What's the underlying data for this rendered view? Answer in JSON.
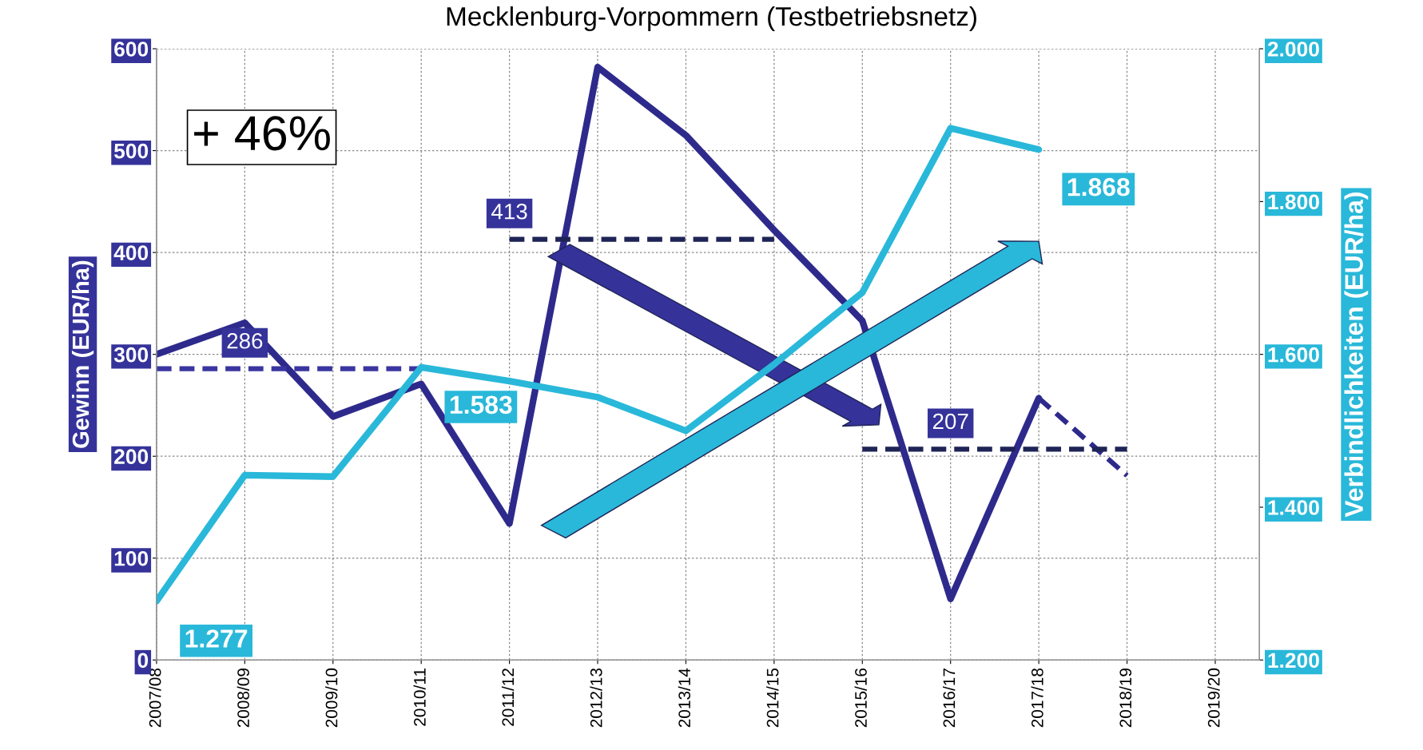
{
  "chart_data": {
    "type": "line",
    "title": "Mecklenburg-Vorpommern (Testbetriebsnetz)",
    "categories": [
      "2007/08",
      "2008/09",
      "2009/10",
      "2010/11",
      "2011/12",
      "2012/13",
      "2013/14",
      "2014/15",
      "2015/16",
      "2016/17",
      "2017/18",
      "2018/19",
      "2019/20"
    ],
    "ylabel": "Gewinn (EUR/ha)",
    "y2label": "Verbindlichkeiten (EUR/ha)",
    "ylim": [
      0,
      600
    ],
    "yticks": [
      0,
      100,
      200,
      300,
      400,
      500,
      600
    ],
    "y2lim": [
      1.2,
      2.0
    ],
    "y2ticks": [
      {
        "value": 1.2,
        "label": "1.200"
      },
      {
        "value": 1.4,
        "label": "1.400"
      },
      {
        "value": 1.6,
        "label": "1.600"
      },
      {
        "value": 1.8,
        "label": "1.800"
      },
      {
        "value": 2.0,
        "label": "2.000"
      }
    ],
    "grid": true,
    "marker": "none",
    "series": [
      {
        "color": "#2e2a8c",
        "values": [
          300,
          331,
          239,
          271,
          134,
          582,
          515,
          422,
          333,
          60,
          257,
          null,
          null
        ]
      },
      {
        "color": "#2e2a8c",
        "x": [
          "2017/18",
          "2018/19"
        ],
        "values": [
          257,
          181
        ],
        "line_style": "dashed"
      },
      {
        "color": "#29b8d9",
        "axis": "y2",
        "values": [
          1.277,
          1.442,
          1.44,
          1.583,
          1.565,
          1.544,
          1.5,
          1.587,
          1.681,
          1.896,
          1.868,
          null,
          null
        ],
        "value_labels": [
          "1.277",
          null,
          null,
          "1.583",
          null,
          null,
          null,
          null,
          null,
          null,
          "1.868",
          null,
          null
        ]
      },
      {
        "color": "#3a35a0",
        "x": [
          "2007/08",
          "2008/09",
          "2009/10",
          "2010/11"
        ],
        "values": [
          286,
          286,
          286,
          286
        ],
        "line_style": "dashed",
        "value_labels": [
          null,
          "286",
          null,
          null
        ]
      },
      {
        "color": "#1f2456",
        "x": [
          "2011/12",
          "2012/13",
          "2013/14",
          "2014/15"
        ],
        "values": [
          413,
          413,
          413,
          413
        ],
        "line_style": "dashed",
        "value_labels": [
          "413",
          null,
          null,
          null
        ]
      },
      {
        "color": "#1f2456",
        "x": [
          "2015/16",
          "2016/17",
          "2017/18",
          "2018/19"
        ],
        "values": [
          207,
          207,
          207,
          207
        ],
        "line_style": "dashed",
        "value_labels": [
          null,
          "207",
          null,
          null
        ]
      }
    ],
    "annotations": [
      "+ 46%"
    ]
  }
}
